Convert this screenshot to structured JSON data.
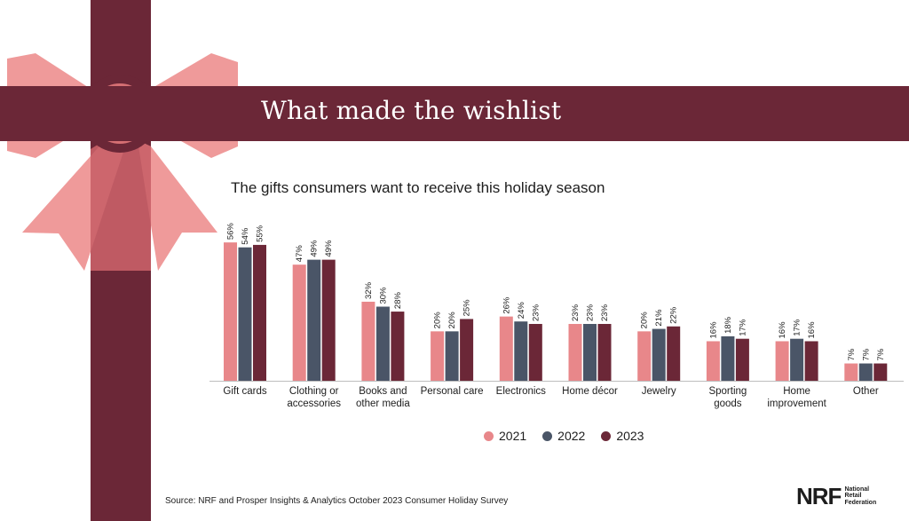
{
  "header": {
    "title": "What made the wishlist"
  },
  "chart_data": {
    "type": "bar",
    "title": "The gifts consumers want to receive this holiday season",
    "xlabel": "",
    "ylabel": "",
    "ylim": [
      0,
      60
    ],
    "grid": false,
    "legend_placement": "bottom-center",
    "value_suffix": "%",
    "categories": [
      [
        "Gift cards"
      ],
      [
        "Clothing or",
        "accessories"
      ],
      [
        "Books and",
        "other media"
      ],
      [
        "Personal care"
      ],
      [
        "Electronics"
      ],
      [
        "Home décor"
      ],
      [
        "Jewelry"
      ],
      [
        "Sporting",
        "goods"
      ],
      [
        "Home",
        "improvement"
      ],
      [
        "Other"
      ]
    ],
    "series": [
      {
        "name": "2021",
        "color": "#e8878a",
        "values": [
          56,
          47,
          32,
          20,
          26,
          23,
          20,
          16,
          16,
          7
        ]
      },
      {
        "name": "2022",
        "color": "#4a5567",
        "values": [
          54,
          49,
          30,
          20,
          24,
          23,
          21,
          18,
          17,
          7
        ]
      },
      {
        "name": "2023",
        "color": "#6b2737",
        "values": [
          55,
          49,
          28,
          25,
          23,
          23,
          22,
          17,
          16,
          7
        ]
      }
    ]
  },
  "footer": {
    "source": "Source: NRF and Prosper Insights & Analytics October 2023 Consumer Holiday Survey",
    "logo_mark": "NRF",
    "logo_text": [
      "National",
      "Retail",
      "Federation"
    ]
  },
  "colors": {
    "ribbon": "#6b2737",
    "bow": "#ef9a9a",
    "bow_overlap": "#d56f73",
    "axis": "#bdbdbd"
  }
}
